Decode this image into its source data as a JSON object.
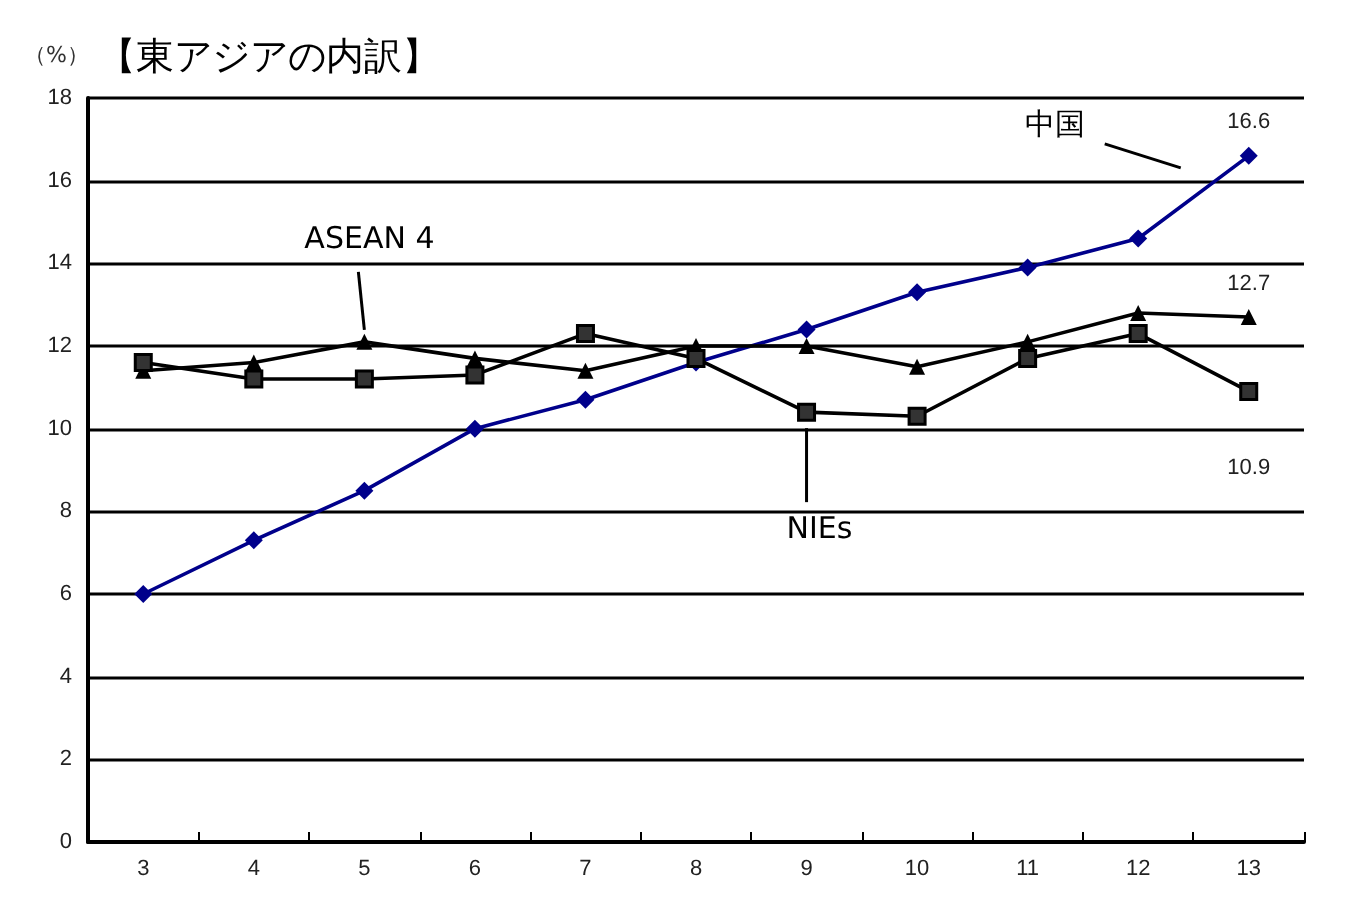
{
  "chart_data": {
    "type": "line",
    "title": "【東アジアの内訳】",
    "ylabel": "（%）",
    "categories": [
      "3",
      "4",
      "5",
      "6",
      "7",
      "8",
      "9",
      "10",
      "11",
      "12",
      "13"
    ],
    "series": [
      {
        "name": "中国",
        "color": "#00008b",
        "marker": "diamond",
        "values": [
          6.0,
          7.3,
          8.5,
          10.0,
          10.7,
          11.6,
          12.4,
          13.3,
          13.9,
          14.6,
          16.6
        ],
        "value_labels": [
          null,
          null,
          null,
          null,
          null,
          null,
          null,
          null,
          null,
          null,
          "16.6"
        ]
      },
      {
        "name": "ASEAN 4",
        "color": "#000000",
        "marker": "triangle",
        "values": [
          11.4,
          11.6,
          12.1,
          11.7,
          11.4,
          12.0,
          12.0,
          11.5,
          12.1,
          12.8,
          12.7
        ],
        "value_labels": [
          null,
          null,
          null,
          null,
          null,
          null,
          null,
          null,
          null,
          null,
          "12.7"
        ]
      },
      {
        "name": "NIEs",
        "color": "#000000",
        "marker": "square",
        "values": [
          11.6,
          11.2,
          11.2,
          11.3,
          12.3,
          11.7,
          10.4,
          10.3,
          11.7,
          12.3,
          10.9
        ],
        "value_labels": [
          null,
          null,
          null,
          null,
          null,
          null,
          null,
          null,
          null,
          null,
          "10.9"
        ]
      }
    ],
    "ylim": [
      0,
      18
    ],
    "yticks": [
      0,
      2,
      4,
      6,
      8,
      10,
      12,
      14,
      16,
      18
    ],
    "grid": "y",
    "legend": false,
    "line_style": "solid"
  }
}
